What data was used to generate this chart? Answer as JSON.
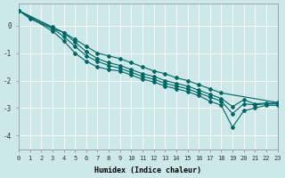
{
  "xlabel": "Humidex (Indice chaleur)",
  "ylabel": "",
  "background_color": "#cce8e8",
  "grid_color": "#ffffff",
  "line_color": "#006666",
  "xlim": [
    0,
    23
  ],
  "ylim": [
    -4.5,
    0.8
  ],
  "yticks": [
    0,
    -1,
    -2,
    -3,
    -4
  ],
  "xticks": [
    0,
    1,
    2,
    3,
    4,
    5,
    6,
    7,
    8,
    9,
    10,
    11,
    12,
    13,
    14,
    15,
    16,
    17,
    18,
    19,
    20,
    21,
    22,
    23
  ],
  "lines": [
    {
      "x": [
        0,
        1,
        3,
        4,
        5,
        6,
        7,
        8,
        9,
        10,
        11,
        12,
        13,
        14,
        15,
        16,
        17,
        18,
        23
      ],
      "y": [
        0.55,
        0.25,
        -0.1,
        -0.25,
        -0.5,
        -0.75,
        -1.0,
        -1.1,
        -1.2,
        -1.35,
        -1.5,
        -1.65,
        -1.75,
        -1.9,
        -2.0,
        -2.15,
        -2.3,
        -2.45,
        -2.8
      ]
    },
    {
      "x": [
        0,
        3,
        4,
        5,
        6,
        7,
        8,
        9,
        10,
        11,
        12,
        13,
        14,
        15,
        16,
        17,
        18,
        19,
        20,
        21,
        22,
        23
      ],
      "y": [
        0.55,
        -0.05,
        -0.25,
        -0.6,
        -0.95,
        -1.2,
        -1.35,
        -1.45,
        -1.6,
        -1.75,
        -1.85,
        -2.0,
        -2.1,
        -2.2,
        -2.35,
        -2.5,
        -2.65,
        -2.95,
        -2.7,
        -2.85,
        -2.82,
        -2.82
      ]
    },
    {
      "x": [
        0,
        3,
        4,
        5,
        6,
        7,
        8,
        9,
        10,
        11,
        12,
        13,
        14,
        15,
        16,
        17,
        18,
        19,
        20,
        21,
        22,
        23
      ],
      "y": [
        0.55,
        -0.1,
        -0.4,
        -0.75,
        -1.1,
        -1.3,
        -1.45,
        -1.55,
        -1.7,
        -1.85,
        -1.95,
        -2.1,
        -2.2,
        -2.3,
        -2.45,
        -2.6,
        -2.75,
        -3.2,
        -2.85,
        -2.88,
        -2.85,
        -2.85
      ]
    },
    {
      "x": [
        0,
        3,
        4,
        5,
        6,
        7,
        8,
        9,
        10,
        11,
        12,
        13,
        14,
        15,
        16,
        17,
        18,
        19,
        20,
        21,
        22,
        23
      ],
      "y": [
        0.55,
        -0.2,
        -0.55,
        -1.0,
        -1.3,
        -1.5,
        -1.6,
        -1.65,
        -1.8,
        -1.95,
        -2.05,
        -2.2,
        -2.3,
        -2.4,
        -2.55,
        -2.75,
        -2.9,
        -3.7,
        -3.1,
        -3.0,
        -2.9,
        -2.9
      ]
    }
  ]
}
